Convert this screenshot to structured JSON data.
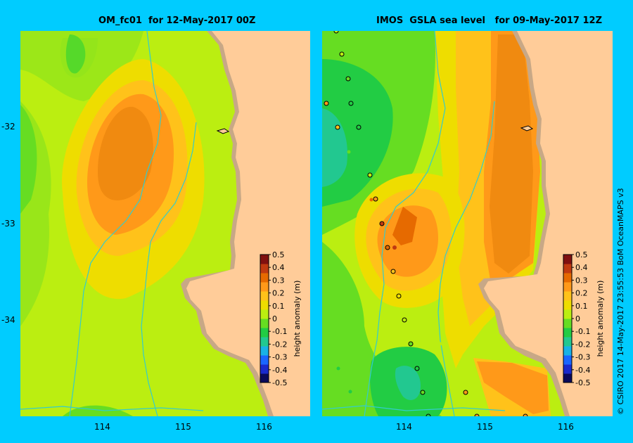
{
  "panels": [
    {
      "id": "left",
      "title": "OM_fc01  for 12-May-2017 00Z"
    },
    {
      "id": "right",
      "title": "IMOS  GSLA sea level   for 09-May-2017 12Z"
    }
  ],
  "x_ticks": [
    "114",
    "115",
    "116"
  ],
  "y_ticks": [
    "-32",
    "-33",
    "-34"
  ],
  "colorbar": {
    "label": "height anomaly (m)",
    "ticks": [
      "0.5",
      "0.4",
      "0.3",
      "0.2",
      "0.1",
      "0",
      "-0.1",
      "-0.2",
      "-0.3",
      "-0.4",
      "-0.5"
    ],
    "colors": [
      "#0a0a5a",
      "#1a2acc",
      "#1a66ff",
      "#19b2e6",
      "#22c890",
      "#22cc44",
      "#66dd22",
      "#bbee11",
      "#eedd00",
      "#ffc21a",
      "#ff9919",
      "#e66a00",
      "#c03a10",
      "#801010"
    ]
  },
  "credit": "© CSIRO 2017    14-May-2017 23:55:53 BoM OceanMAPS v3",
  "colors": {
    "background": "#00ccff",
    "land": "#ffcc99",
    "shelf": "#c8a886",
    "isobath": "#33cccc"
  },
  "chart_data": [
    {
      "type": "heatmap",
      "title": "OM_fc01  for 12-May-2017 00Z",
      "x_ticks": [
        114,
        115,
        116
      ],
      "y_ticks": [
        -32,
        -33,
        -34
      ],
      "value_range": [
        -0.5,
        0.5
      ],
      "colorbar_label": "height anomaly (m)",
      "peak_anomaly": {
        "lon": 114.3,
        "lat": -32.4,
        "value": 0.3
      },
      "low_anomaly": {
        "lon": 113.0,
        "lat": -31.9,
        "value": 0.0
      }
    },
    {
      "type": "heatmap",
      "title": "IMOS  GSLA sea level   for 09-May-2017 12Z",
      "x_ticks": [
        114,
        115,
        116
      ],
      "y_ticks": [
        -32,
        -33,
        -34
      ],
      "value_range": [
        -0.5,
        0.5
      ],
      "colorbar_label": "height anomaly (m)",
      "peak_anomaly": {
        "lon": 114.0,
        "lat": -33.0,
        "value": 0.3
      },
      "low_anomalies": [
        {
          "lon": 113.1,
          "lat": -32.1,
          "value": -0.1
        },
        {
          "lon": 114.0,
          "lat": -34.6,
          "value": -0.1
        }
      ]
    }
  ]
}
